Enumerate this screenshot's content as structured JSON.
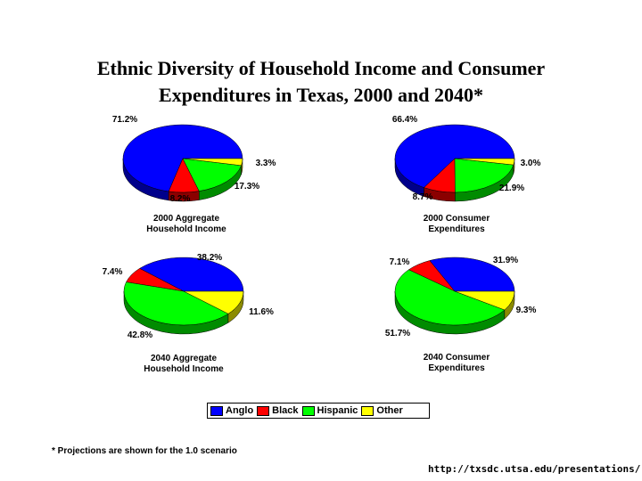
{
  "title_line1": "Ethnic Diversity of Household Income and Consumer",
  "title_line2": "Expenditures in Texas, 2000 and 2040*",
  "chart_data": [
    {
      "type": "pie",
      "caption_line1": "2000 Aggregate",
      "caption_line2": "Household Income",
      "categories": [
        "Anglo",
        "Black",
        "Hispanic",
        "Other"
      ],
      "values": [
        71.2,
        8.2,
        17.3,
        3.3
      ],
      "labels": [
        "71.2%",
        "8.2%",
        "17.3%",
        "3.3%"
      ]
    },
    {
      "type": "pie",
      "caption_line1": "2000 Consumer",
      "caption_line2": "Expenditures",
      "categories": [
        "Anglo",
        "Black",
        "Hispanic",
        "Other"
      ],
      "values": [
        66.4,
        8.7,
        21.9,
        3.0
      ],
      "labels": [
        "66.4%",
        "8.7%",
        "21.9%",
        "3.0%"
      ]
    },
    {
      "type": "pie",
      "caption_line1": "2040 Aggregate",
      "caption_line2": "Household Income",
      "categories": [
        "Anglo",
        "Black",
        "Hispanic",
        "Other"
      ],
      "values": [
        38.2,
        7.4,
        42.8,
        11.6
      ],
      "labels": [
        "38.2%",
        "7.4%",
        "42.8%",
        "11.6%"
      ]
    },
    {
      "type": "pie",
      "caption_line1": "2040 Consumer",
      "caption_line2": "Expenditures",
      "categories": [
        "Anglo",
        "Black",
        "Hispanic",
        "Other"
      ],
      "values": [
        31.9,
        7.1,
        51.7,
        9.3
      ],
      "labels": [
        "31.9%",
        "7.1%",
        "51.7%",
        "9.3%"
      ]
    }
  ],
  "legend": [
    {
      "label": "Anglo",
      "color": "#0000ff"
    },
    {
      "label": "Black",
      "color": "#ff0000"
    },
    {
      "label": "Hispanic",
      "color": "#00ff00"
    },
    {
      "label": "Other",
      "color": "#ffff00"
    }
  ],
  "colors": {
    "Anglo": "#0000ff",
    "Black": "#ff0000",
    "Hispanic": "#00ff00",
    "Other": "#ffff00",
    "Anglo_side": "#00008b",
    "Black_side": "#8b0000",
    "Hispanic_side": "#008b00",
    "Other_side": "#8b8b00"
  },
  "footnote": "* Projections are shown for the 1.0 scenario",
  "url": "http://txsdc.utsa.edu/presentations/"
}
